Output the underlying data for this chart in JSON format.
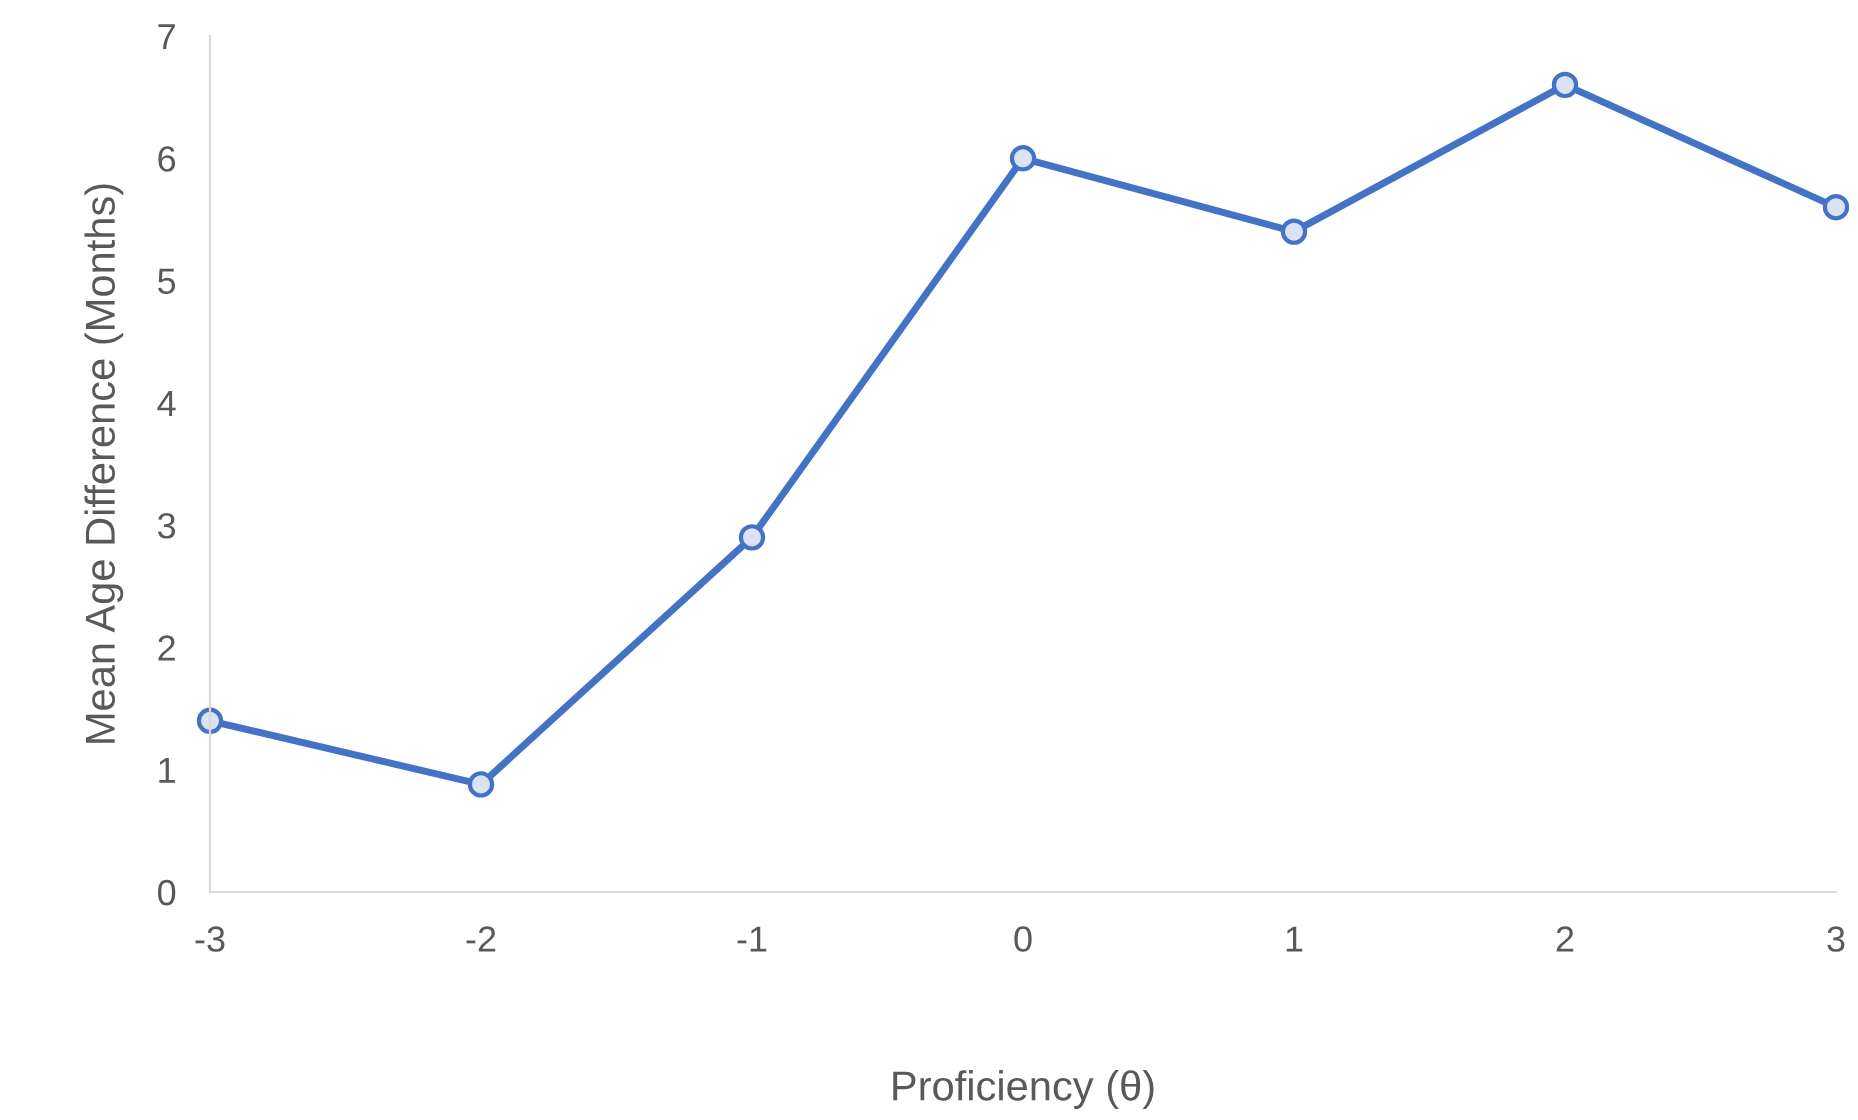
{
  "chart_data": {
    "type": "line",
    "xlabel": "Proficiency (θ)",
    "ylabel": "Mean Age Difference (Months)",
    "x": [
      -3,
      -2,
      -1,
      0,
      1,
      2,
      3
    ],
    "series": [
      {
        "color": "#4472c4",
        "values": [
          1.4,
          0.88,
          2.9,
          6.0,
          5.4,
          6.6,
          5.6
        ]
      }
    ],
    "xlim": [
      -3,
      3
    ],
    "xticks": [
      -3,
      -2,
      -1,
      0,
      1,
      2,
      3
    ],
    "ylim": [
      0,
      7
    ],
    "yticks": [
      0,
      1,
      2,
      3,
      4,
      5,
      6,
      7
    ],
    "grid": false,
    "legend": false,
    "marker": "circle",
    "line_style": "solid"
  }
}
